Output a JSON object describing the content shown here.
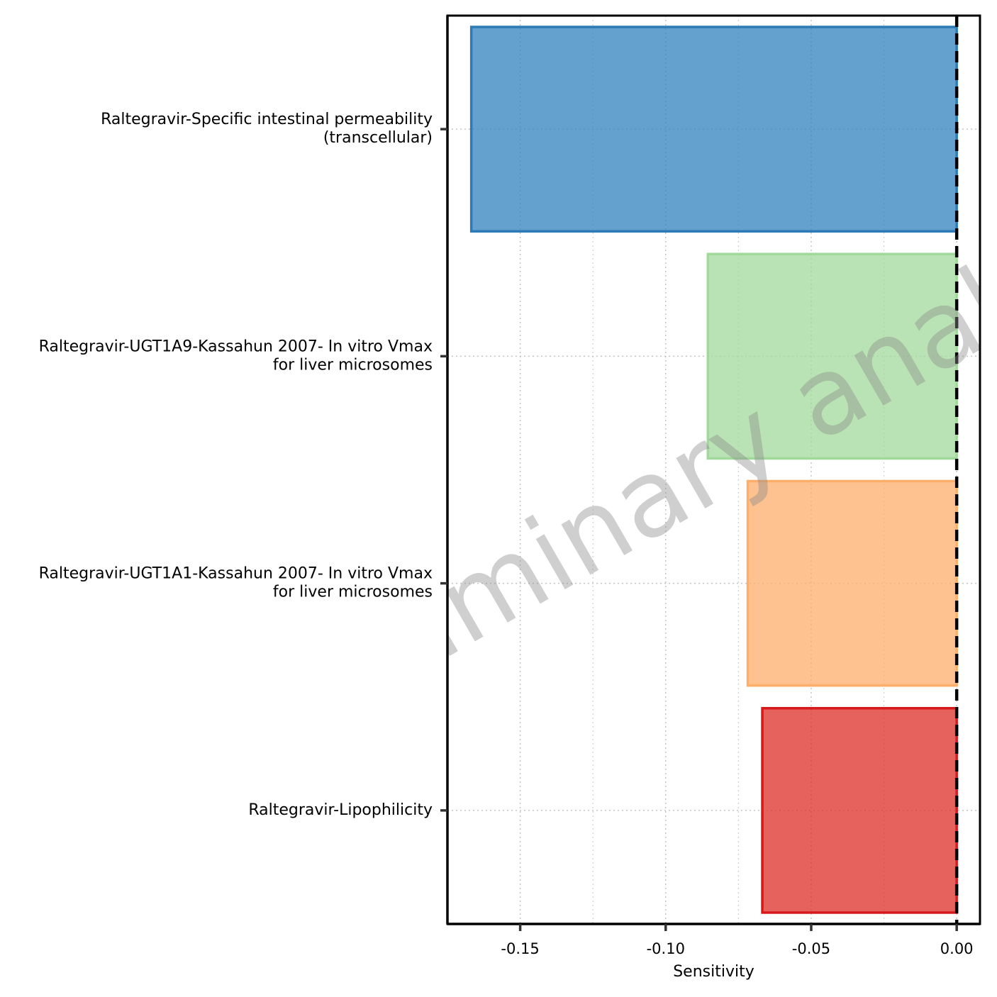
{
  "chart_data": {
    "type": "bar",
    "orientation": "horizontal",
    "xlabel": "Sensitivity",
    "ylabel": "",
    "xlim": [
      -0.175,
      0.008
    ],
    "xticks": [
      -0.15,
      -0.1,
      -0.05,
      0.0
    ],
    "xtick_labels": [
      "-0.15",
      "-0.10",
      "-0.05",
      "0.00"
    ],
    "reference_line": 0,
    "grid": true,
    "watermark": "preliminary analysis",
    "categories": [
      {
        "label_lines": [
          "Raltegravir-Specific intestinal permeability",
          "(transcellular)"
        ],
        "value": -0.1668,
        "fill": "#3182bd",
        "stroke": "#2c7bb6"
      },
      {
        "label_lines": [
          "Raltegravir-UGT1A9-Kassahun 2007- In vitro Vmax",
          "for liver microsomes"
        ],
        "value": -0.0855,
        "fill": "#a1d99b",
        "stroke": "#a1d99b"
      },
      {
        "label_lines": [
          "Raltegravir-UGT1A1-Kassahun 2007- In vitro Vmax",
          "for liver microsomes"
        ],
        "value": -0.0718,
        "fill": "#fdae6b",
        "stroke": "#fdae6b"
      },
      {
        "label_lines": [
          "Raltegravir-Lipophilicity"
        ],
        "value": -0.0668,
        "fill": "#de2d26",
        "stroke": "#d7191c"
      }
    ]
  }
}
